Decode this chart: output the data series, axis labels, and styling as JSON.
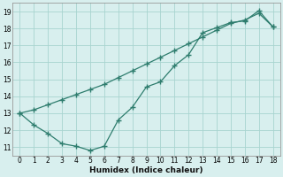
{
  "xlabel": "Humidex (Indice chaleur)",
  "xlim": [
    -0.5,
    18.5
  ],
  "ylim": [
    10.5,
    19.5
  ],
  "xticks": [
    0,
    1,
    2,
    3,
    4,
    5,
    6,
    7,
    8,
    9,
    10,
    11,
    12,
    13,
    14,
    15,
    16,
    17,
    18
  ],
  "yticks": [
    11,
    12,
    13,
    14,
    15,
    16,
    17,
    18,
    19
  ],
  "line_upper_x": [
    0,
    1,
    2,
    3,
    4,
    5,
    6,
    7,
    8,
    9,
    10,
    11,
    12,
    13,
    14,
    15,
    16,
    17,
    18
  ],
  "line_upper_y": [
    13.0,
    13.2,
    13.5,
    13.8,
    14.1,
    14.4,
    14.7,
    15.1,
    15.5,
    15.9,
    16.3,
    16.7,
    17.1,
    17.5,
    17.9,
    18.3,
    18.5,
    18.9,
    18.1
  ],
  "line_lower_x": [
    0,
    1,
    2,
    3,
    4,
    5,
    6,
    7,
    8,
    9,
    10,
    11,
    12,
    13,
    14,
    15,
    16,
    17,
    18
  ],
  "line_lower_y": [
    13.0,
    12.3,
    11.8,
    11.2,
    11.05,
    10.8,
    11.05,
    12.6,
    13.35,
    14.55,
    14.85,
    15.8,
    16.45,
    17.75,
    18.05,
    18.35,
    18.45,
    19.05,
    18.1
  ],
  "line_color": "#2e7d6e",
  "bg_color": "#d8efee",
  "grid_color": "#a8d4d0"
}
